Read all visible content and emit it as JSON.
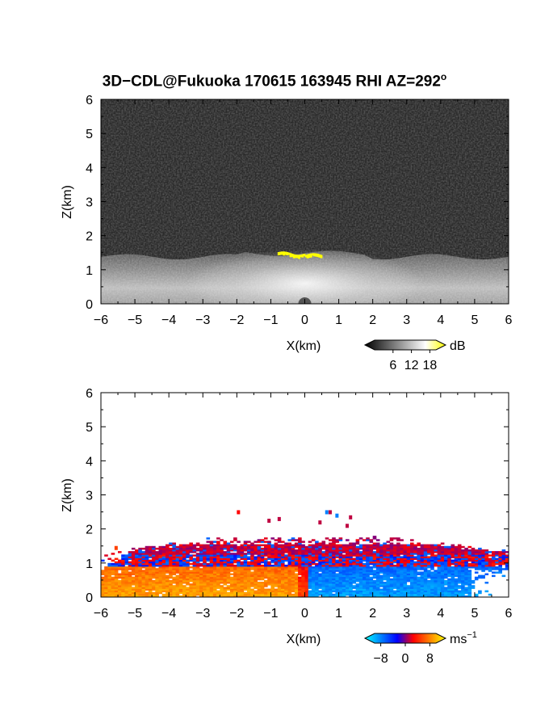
{
  "title": {
    "text": "3D−CDL@Fukuoka 170615 163945 RHI AZ=292",
    "degree": "o"
  },
  "chart_data": [
    {
      "type": "heatmap",
      "name": "backscatter-intensity",
      "xlabel": "X(km)",
      "ylabel": "Z(km)",
      "xlim": [
        -6,
        6
      ],
      "ylim": [
        0,
        6
      ],
      "xticks": [
        "−6",
        "−5",
        "−4",
        "−3",
        "−2",
        "−1",
        "0",
        "1",
        "2",
        "3",
        "4",
        "5",
        "6"
      ],
      "yticks": [
        "0",
        "1",
        "2",
        "3",
        "4",
        "5",
        "6"
      ],
      "colorbar": {
        "unit": "dB",
        "ticks": [
          "6",
          "12",
          "18"
        ],
        "tick_values": [
          6,
          12,
          18
        ],
        "range": [
          0,
          20
        ],
        "colors": [
          "#000000",
          "#555555",
          "#aaaaaa",
          "#ffffff",
          "#ffff00"
        ]
      },
      "features": {
        "boundary_layer_top_km": 1.4,
        "strong_echo_layer": {
          "x": [
            -0.8,
            0.5
          ],
          "z": 1.45,
          "color": "#ffff00"
        }
      }
    },
    {
      "type": "heatmap",
      "name": "doppler-velocity",
      "xlabel": "X(km)",
      "ylabel": "Z(km)",
      "xlim": [
        -6,
        6
      ],
      "ylim": [
        0,
        6
      ],
      "xticks": [
        "−6",
        "−5",
        "−4",
        "−3",
        "−2",
        "−1",
        "0",
        "1",
        "2",
        "3",
        "4",
        "5",
        "6"
      ],
      "yticks": [
        "0",
        "1",
        "2",
        "3",
        "4",
        "5",
        "6"
      ],
      "colorbar": {
        "unit": "ms",
        "unit_exp": "−1",
        "ticks": [
          "−8",
          "0",
          "8"
        ],
        "tick_values": [
          -8,
          0,
          8
        ],
        "range": [
          -10,
          10
        ],
        "colors": [
          "#00ffff",
          "#0080ff",
          "#0000ff",
          "#ff0000",
          "#ff8000",
          "#ffff00"
        ]
      },
      "features": {
        "echo_top_km": 1.7,
        "lower_left_velocity_ms": 7,
        "lower_right_velocity_ms": -7,
        "upper_layer_velocity_ms": 1
      }
    }
  ]
}
